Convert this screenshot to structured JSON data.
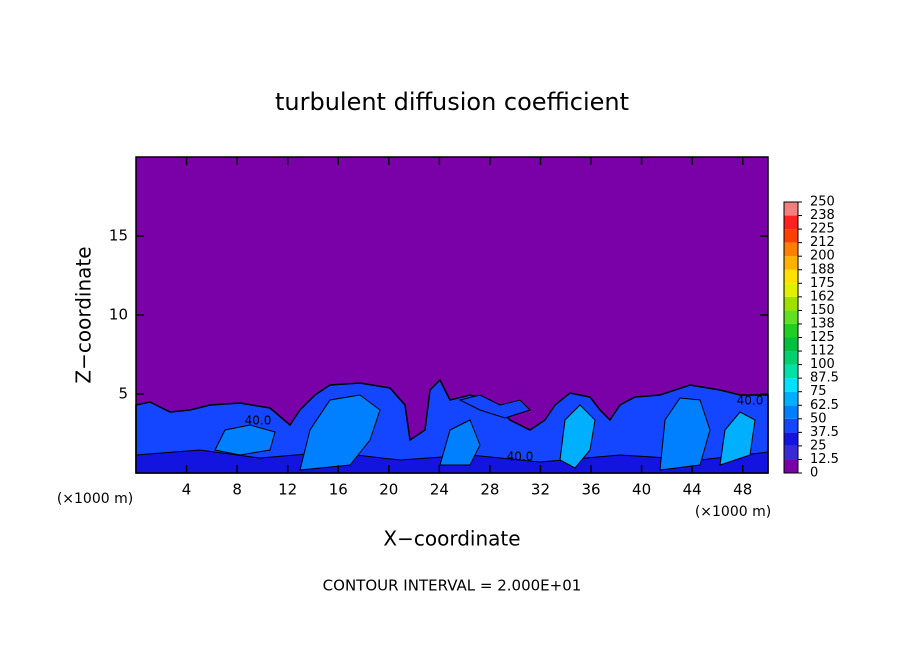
{
  "chart_data": {
    "type": "contour",
    "title": "turbulent diffusion coefficient",
    "xlabel": "X−coordinate",
    "ylabel": "Z−coordinate",
    "x_unit_label": "(×1000 m)",
    "xlim": [
      0,
      50
    ],
    "ylim": [
      0,
      20
    ],
    "xticks": [
      4,
      8,
      12,
      16,
      20,
      24,
      28,
      32,
      36,
      40,
      44,
      48
    ],
    "yticks": [
      5,
      10,
      15
    ],
    "colorbar": {
      "levels": [
        0,
        12.5,
        25,
        37.5,
        50,
        62.5,
        75,
        87.5,
        100,
        112,
        125,
        138,
        150,
        162,
        175,
        188,
        200,
        212,
        225,
        238,
        250
      ],
      "colors": [
        "#7a00a8",
        "#3a2ad6",
        "#1414e0",
        "#1446ff",
        "#0080ff",
        "#00b0ff",
        "#00e0ff",
        "#00e0a8",
        "#00d070",
        "#00c040",
        "#20d020",
        "#60e020",
        "#a0e000",
        "#e0f000",
        "#ffe000",
        "#ffb000",
        "#ff8000",
        "#ff4000",
        "#ff2020",
        "#f08080"
      ]
    },
    "contour_labels": [
      "40.0",
      "40.0",
      "40.0"
    ],
    "note": "CONTOUR INTERVAL = 2.000E+01"
  }
}
